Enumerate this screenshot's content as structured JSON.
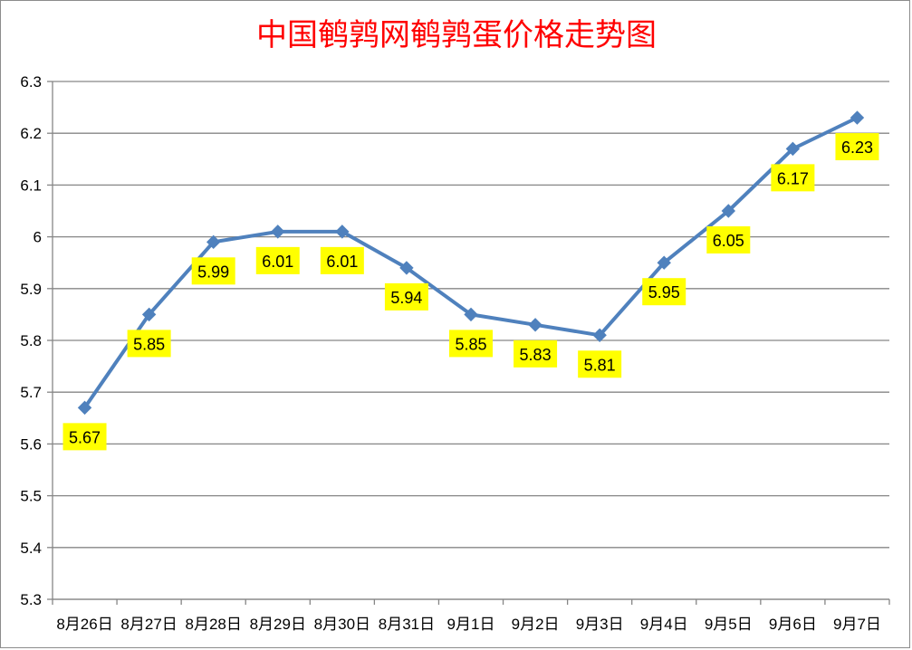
{
  "chart_data": {
    "type": "line",
    "title": "中国鹌鹑网鹌鹑蛋价格走势图",
    "categories": [
      "8月26日",
      "8月27日",
      "8月28日",
      "8月29日",
      "8月30日",
      "8月31日",
      "9月1日",
      "9月2日",
      "9月3日",
      "9月4日",
      "9月5日",
      "9月6日",
      "9月7日"
    ],
    "series": [
      {
        "values": [
          5.67,
          5.85,
          5.99,
          6.01,
          6.01,
          5.94,
          5.85,
          5.83,
          5.81,
          5.95,
          6.05,
          6.17,
          6.23
        ],
        "labels": [
          "5.67",
          "5.85",
          "5.99",
          "6.01",
          "6.01",
          "5.94",
          "5.85",
          "5.83",
          "5.81",
          "5.95",
          "6.05",
          "6.17",
          "6.23"
        ]
      }
    ],
    "y_ticks": [
      "6.3",
      "6.2",
      "6.1",
      "6",
      "5.9",
      "5.8",
      "5.7",
      "5.6",
      "5.5",
      "5.4",
      "5.3"
    ],
    "ylim": [
      5.3,
      6.3
    ],
    "xlabel": "",
    "ylabel": "",
    "grid": true,
    "legend": "none",
    "colors": {
      "title": "#ff0000",
      "line": "#4f81bd",
      "label_bg": "#ffff00",
      "grid": "#868686"
    }
  }
}
